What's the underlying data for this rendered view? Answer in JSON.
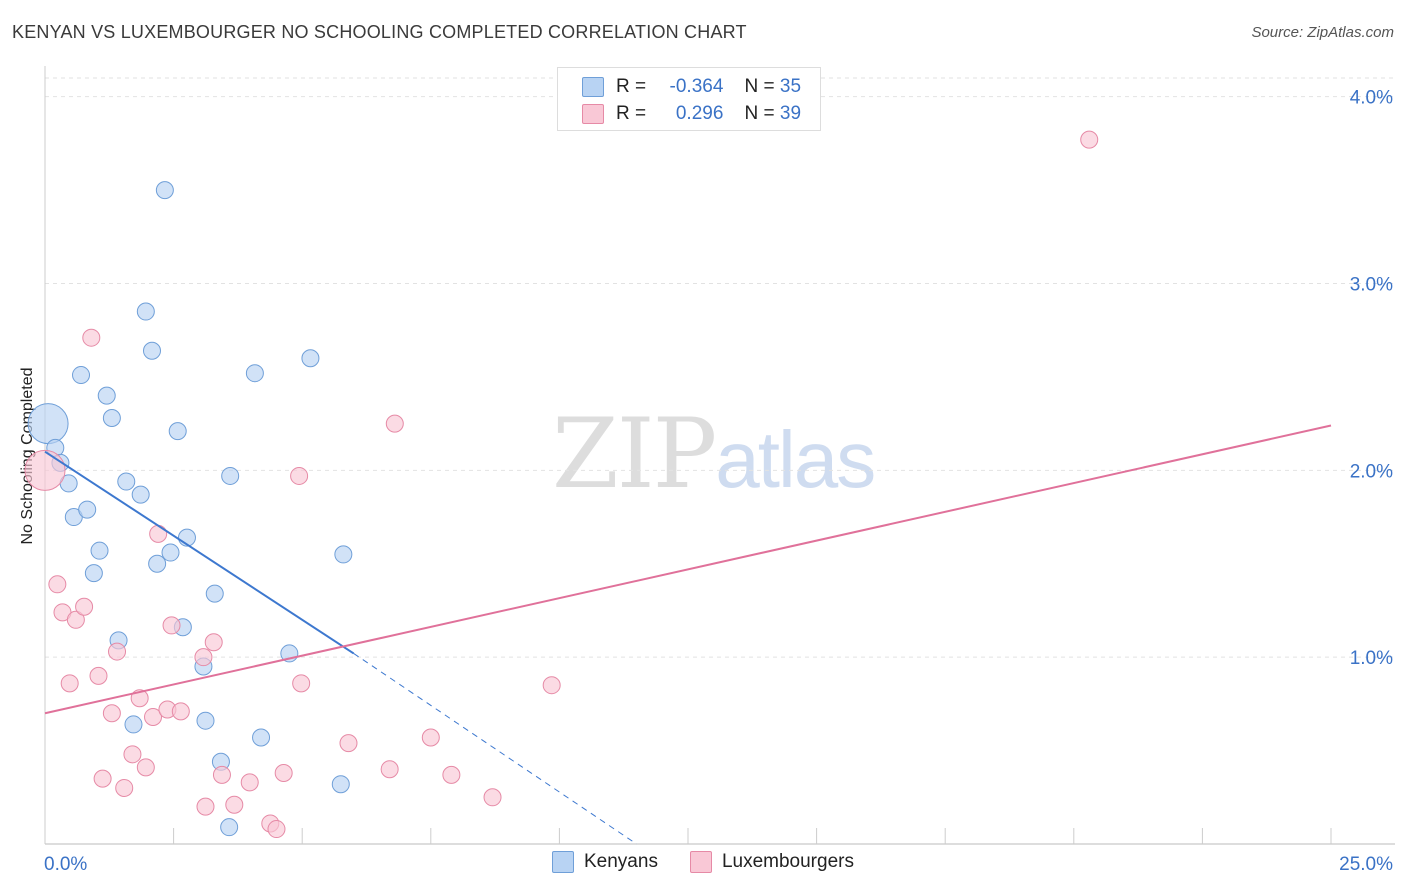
{
  "title": "KENYAN VS LUXEMBOURGER NO SCHOOLING COMPLETED CORRELATION CHART",
  "source": "Source: ZipAtlas.com",
  "watermark": {
    "zip": "ZIP",
    "atlas": "atlas"
  },
  "stats": [
    {
      "r_label": "R =",
      "r_value": "-0.364",
      "n_label": "N =",
      "n_value": "35"
    },
    {
      "r_label": "R =",
      "r_value": "0.296",
      "n_label": "N =",
      "n_value": "39"
    }
  ],
  "colors": {
    "kenyan_fill": "#b8d3f3",
    "kenyan_stroke": "#6f9fd8",
    "kenyan_line": "#3d78cf",
    "lux_fill": "#f9c8d6",
    "lux_stroke": "#e68aa6",
    "lux_line": "#e0719a",
    "axis_text": "#3a72c6",
    "grid": "#e2e2e2"
  },
  "chart_data": {
    "type": "scatter",
    "title": "KENYAN VS LUXEMBOURGER NO SCHOOLING COMPLETED CORRELATION CHART",
    "xlabel": "",
    "ylabel": "No Schooling Completed",
    "xlim": [
      0,
      25
    ],
    "ylim": [
      0,
      4.1
    ],
    "x_tick_labels": [
      "0.0%",
      "25.0%"
    ],
    "y_ticks": [
      1,
      2,
      3,
      4
    ],
    "y_tick_labels": [
      "1.0%",
      "2.0%",
      "3.0%",
      "4.0%"
    ],
    "legend": [
      "Kenyans",
      "Luxembourgers"
    ],
    "series": [
      {
        "name": "Kenyans",
        "points": [
          {
            "x": 0.06,
            "y": 2.25,
            "large": true
          },
          {
            "x": 0.2,
            "y": 2.12
          },
          {
            "x": 0.3,
            "y": 2.04
          },
          {
            "x": 0.46,
            "y": 1.93
          },
          {
            "x": 0.56,
            "y": 1.75
          },
          {
            "x": 0.7,
            "y": 2.51
          },
          {
            "x": 0.82,
            "y": 1.79
          },
          {
            "x": 0.95,
            "y": 1.45
          },
          {
            "x": 1.06,
            "y": 1.57
          },
          {
            "x": 1.2,
            "y": 2.4
          },
          {
            "x": 1.3,
            "y": 2.28
          },
          {
            "x": 1.43,
            "y": 1.09
          },
          {
            "x": 1.58,
            "y": 1.94
          },
          {
            "x": 1.72,
            "y": 0.64
          },
          {
            "x": 1.86,
            "y": 1.87
          },
          {
            "x": 1.96,
            "y": 2.85
          },
          {
            "x": 2.08,
            "y": 2.64
          },
          {
            "x": 2.18,
            "y": 1.5
          },
          {
            "x": 2.33,
            "y": 3.5
          },
          {
            "x": 2.44,
            "y": 1.56
          },
          {
            "x": 2.58,
            "y": 2.21
          },
          {
            "x": 2.68,
            "y": 1.16
          },
          {
            "x": 2.76,
            "y": 1.64
          },
          {
            "x": 3.08,
            "y": 0.95
          },
          {
            "x": 3.12,
            "y": 0.66
          },
          {
            "x": 3.3,
            "y": 1.34
          },
          {
            "x": 3.42,
            "y": 0.44
          },
          {
            "x": 3.58,
            "y": 0.09
          },
          {
            "x": 3.6,
            "y": 1.97
          },
          {
            "x": 4.08,
            "y": 2.52
          },
          {
            "x": 4.2,
            "y": 0.57
          },
          {
            "x": 4.75,
            "y": 1.02
          },
          {
            "x": 5.16,
            "y": 2.6
          },
          {
            "x": 5.75,
            "y": 0.32
          },
          {
            "x": 5.8,
            "y": 1.55
          }
        ],
        "trend": {
          "x0": 0.0,
          "y0": 2.1,
          "x1": 6.0,
          "y1": 1.02,
          "dash_to_x": 11.5,
          "dash_to_y": 0.0
        }
      },
      {
        "name": "Luxembourgers",
        "points": [
          {
            "x": 0.0,
            "y": 2.0,
            "large": true
          },
          {
            "x": 0.24,
            "y": 1.39
          },
          {
            "x": 0.34,
            "y": 1.24
          },
          {
            "x": 0.48,
            "y": 0.86
          },
          {
            "x": 0.6,
            "y": 1.2
          },
          {
            "x": 0.76,
            "y": 1.27
          },
          {
            "x": 0.9,
            "y": 2.71
          },
          {
            "x": 1.04,
            "y": 0.9
          },
          {
            "x": 1.12,
            "y": 0.35
          },
          {
            "x": 1.3,
            "y": 0.7
          },
          {
            "x": 1.4,
            "y": 1.03
          },
          {
            "x": 1.54,
            "y": 0.3
          },
          {
            "x": 1.7,
            "y": 0.48
          },
          {
            "x": 1.84,
            "y": 0.78
          },
          {
            "x": 1.96,
            "y": 0.41
          },
          {
            "x": 2.1,
            "y": 0.68
          },
          {
            "x": 2.2,
            "y": 1.66
          },
          {
            "x": 2.38,
            "y": 0.72
          },
          {
            "x": 2.46,
            "y": 1.17
          },
          {
            "x": 2.64,
            "y": 0.71
          },
          {
            "x": 3.08,
            "y": 1.0
          },
          {
            "x": 3.12,
            "y": 0.2
          },
          {
            "x": 3.28,
            "y": 1.08
          },
          {
            "x": 3.44,
            "y": 0.37
          },
          {
            "x": 3.68,
            "y": 0.21
          },
          {
            "x": 3.98,
            "y": 0.33
          },
          {
            "x": 4.38,
            "y": 0.11
          },
          {
            "x": 4.5,
            "y": 0.08
          },
          {
            "x": 4.64,
            "y": 0.38
          },
          {
            "x": 4.94,
            "y": 1.97
          },
          {
            "x": 4.98,
            "y": 0.86
          },
          {
            "x": 5.9,
            "y": 0.54
          },
          {
            "x": 6.7,
            "y": 0.4
          },
          {
            "x": 6.8,
            "y": 2.25
          },
          {
            "x": 7.5,
            "y": 0.57
          },
          {
            "x": 7.9,
            "y": 0.37
          },
          {
            "x": 8.7,
            "y": 0.25
          },
          {
            "x": 9.85,
            "y": 0.85
          },
          {
            "x": 20.3,
            "y": 3.77
          }
        ],
        "trend": {
          "x0": 0.0,
          "y0": 0.7,
          "x1": 25.0,
          "y1": 2.24
        }
      }
    ]
  }
}
